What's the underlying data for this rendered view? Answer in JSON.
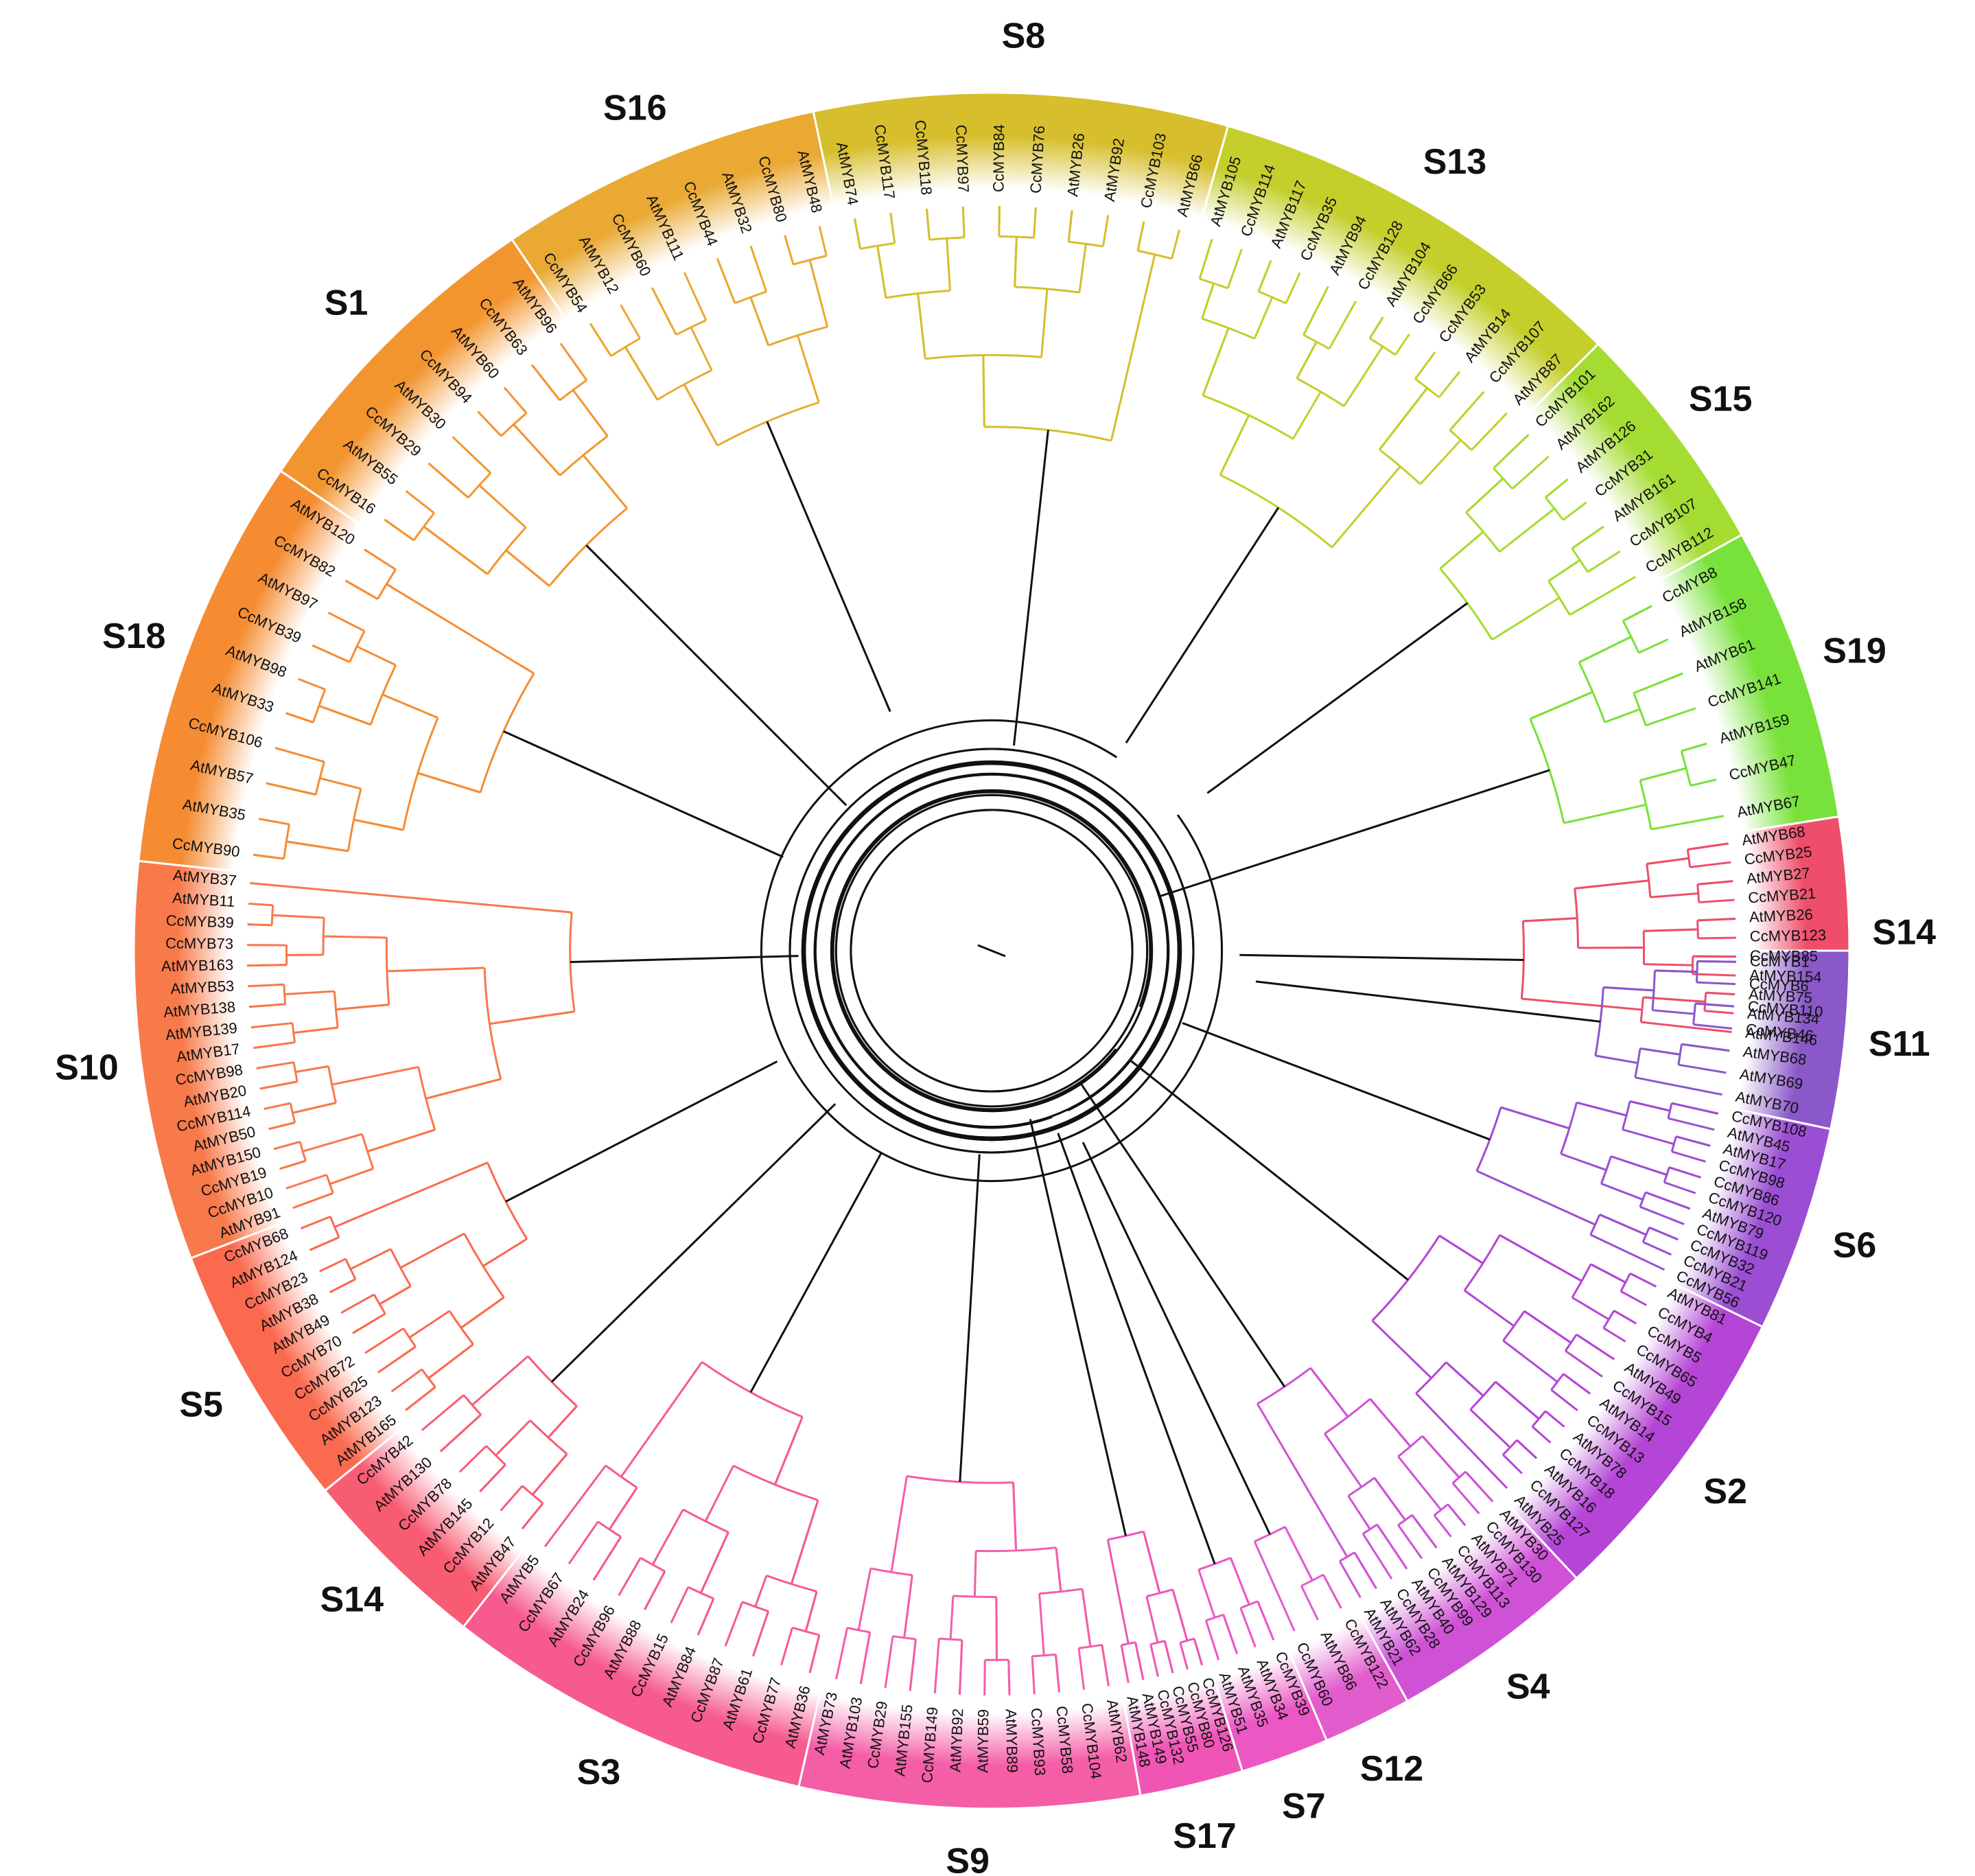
{
  "figure": {
    "description_type": "circular phylogenetic tree of MYB genes"
  },
  "subfamilies": [
    {
      "label": "S14",
      "color": "#ee4e6a",
      "start_deg": 351,
      "end_deg": 7,
      "leaves": [
        "AtMYB68",
        "CcMYB25",
        "AtMYB27",
        "CcMYB21",
        "AtMYB26",
        "CcMYB123",
        "CcMYB85",
        "AtMYB154",
        "AtMYB75",
        "AtMYB134",
        "AtMYB146"
      ]
    },
    {
      "label": "S19",
      "color": "#78e23a",
      "start_deg": 331,
      "end_deg": 351,
      "leaves": [
        "CcMYB8",
        "AtMYB158",
        "AtMYB61",
        "CcMYB141",
        "AtMYB159",
        "CcMYB47",
        "AtMYB67"
      ]
    },
    {
      "label": "S15",
      "color": "#a4dc32",
      "start_deg": 315,
      "end_deg": 331,
      "leaves": [
        "CcMYB101",
        "AtMYB162",
        "AtMYB126",
        "CcMYB31",
        "AtMYB161",
        "CcMYB107",
        "CcMYB112"
      ]
    },
    {
      "label": "S13",
      "color": "#c4cf2c",
      "start_deg": 286,
      "end_deg": 315,
      "leaves": [
        "AtMYB105",
        "CcMYB114",
        "AtMYB117",
        "CcMYB35",
        "AtMYB94",
        "CcMYB128",
        "AtMYB104",
        "CcMYB66",
        "CcMYB53",
        "AtMYB14",
        "CcMYB107",
        "AtMYB87"
      ]
    },
    {
      "label": "S8",
      "color": "#d6be2c",
      "start_deg": 258,
      "end_deg": 286,
      "leaves": [
        "AtMYB74",
        "CcMYB117",
        "CcMYB118",
        "CcMYB97",
        "CcMYB84",
        "CcMYB76",
        "AtMYB26",
        "AtMYB92",
        "CcMYB103",
        "AtMYB66"
      ]
    },
    {
      "label": "S16",
      "color": "#e9a933",
      "start_deg": 236,
      "end_deg": 258,
      "leaves": [
        "CcMYB54",
        "AtMYB12",
        "CcMYB60",
        "AtMYB111",
        "CcMYB44",
        "AtMYB32",
        "CcMYB80",
        "AtMYB48"
      ]
    },
    {
      "label": "S1",
      "color": "#f3952f",
      "start_deg": 214,
      "end_deg": 236,
      "leaves": [
        "CcMYB16",
        "AtMYB55",
        "CcMYB29",
        "AtMYB30",
        "CcMYB94",
        "AtMYB60",
        "CcMYB63",
        "AtMYB96"
      ]
    },
    {
      "label": "S18",
      "color": "#f58c32",
      "start_deg": 186,
      "end_deg": 214,
      "leaves": [
        "CcMYB90",
        "AtMYB35",
        "AtMYB57",
        "CcMYB106",
        "AtMYB33",
        "AtMYB98",
        "CcMYB39",
        "AtMYB97",
        "CcMYB82",
        "AtMYB120"
      ]
    },
    {
      "label": "S10",
      "color": "#f8794a",
      "start_deg": 159,
      "end_deg": 186,
      "leaves": [
        "AtMYB91",
        "CcMYB10",
        "CcMYB19",
        "AtMYB150",
        "AtMYB50",
        "CcMYB114",
        "AtMYB20",
        "CcMYB98",
        "AtMYB17",
        "AtMYB139",
        "AtMYB138",
        "AtMYB53",
        "AtMYB163",
        "CcMYB73",
        "CcMYB39",
        "AtMYB11",
        "AtMYB37"
      ]
    },
    {
      "label": "S5",
      "color": "#fb6a4f",
      "start_deg": 141,
      "end_deg": 159,
      "leaves": [
        "AtMYB165",
        "AtMYB123",
        "CcMYB25",
        "CcMYB72",
        "CcMYB70",
        "AtMYB49",
        "AtMYB38",
        "CcMYB23",
        "AtMYB124",
        "CcMYB68"
      ]
    },
    {
      "label": "S14",
      "color": "#f85c73",
      "start_deg": 128,
      "end_deg": 141,
      "leaves": [
        "AtMYB47",
        "CcMYB12",
        "AtMYB145",
        "CcMYB78",
        "AtMYB130",
        "CcMYB42"
      ]
    },
    {
      "label": "S3",
      "color": "#f65a8e",
      "start_deg": 103,
      "end_deg": 128,
      "leaves": [
        "AtMYB36",
        "CcMYB77",
        "AtMYB61",
        "CcMYB87",
        "AtMYB84",
        "CcMYB15",
        "AtMYB88",
        "CcMYB96",
        "AtMYB24",
        "CcMYB67",
        "AtMYB5"
      ]
    },
    {
      "label": "S9",
      "color": "#f45ea7",
      "start_deg": 80,
      "end_deg": 103,
      "leaves": [
        "AtMYB62",
        "CcMYB104",
        "CcMYB58",
        "CcMYB93",
        "AtMYB89",
        "AtMYB59",
        "AtMYB92",
        "CcMYB149",
        "AtMYB155",
        "CcMYB29",
        "AtMYB103",
        "AtMYB73"
      ]
    },
    {
      "label": "S17",
      "color": "#f055b6",
      "start_deg": 73,
      "end_deg": 80,
      "leaves": [
        "CcMYB126",
        "CcMYB80",
        "CcMYB55",
        "CcMYB132",
        "AtMYB149",
        "AtMYB148"
      ]
    },
    {
      "label": "S7",
      "color": "#eb58c3",
      "start_deg": 67,
      "end_deg": 73,
      "leaves": [
        "CcMYB39",
        "AtMYB34",
        "AtMYB35",
        "AtMYB51"
      ]
    },
    {
      "label": "S12",
      "color": "#e15ccd",
      "start_deg": 61,
      "end_deg": 67,
      "leaves": [
        "CcMYB122",
        "AtMYB86",
        "CcMYB60"
      ]
    },
    {
      "label": "S4",
      "color": "#cf52d6",
      "start_deg": 47,
      "end_deg": 61,
      "leaves": [
        "AtMYB30",
        "CcMYB130",
        "AtMYB71",
        "CcMYB113",
        "AtMYB129",
        "CcMYB99",
        "AtMYB40",
        "CcMYB28",
        "AtMYB62",
        "AtMYB21"
      ]
    },
    {
      "label": "S2",
      "color": "#b545d6",
      "start_deg": 26,
      "end_deg": 47,
      "leaves": [
        "AtMYB81",
        "CcMYB4",
        "CcMYB5",
        "CcMYB65",
        "AtMYB49",
        "CcMYB15",
        "AtMYB14",
        "CcMYB13",
        "AtMYB78",
        "CcMYB18",
        "AtMYB16",
        "CcMYB127",
        "AtMYB25"
      ]
    },
    {
      "label": "S6",
      "color": "#9b4ed3",
      "start_deg": 12,
      "end_deg": 26,
      "leaves": [
        "CcMYB108",
        "AtMYB45",
        "AtMYB17",
        "CcMYB98",
        "CcMYB86",
        "CcMYB120",
        "AtMYB79",
        "CcMYB119",
        "CcMYB32",
        "CcMYB21",
        "CcMYB56"
      ]
    },
    {
      "label": "S11",
      "color": "#8a58c8",
      "start_deg": 0,
      "end_deg": 12,
      "leaves": [
        "CcMYB1",
        "CcMYB6",
        "CcMYB110",
        "CcMYB46",
        "AtMYB68",
        "AtMYB69",
        "AtMYB70"
      ]
    }
  ]
}
